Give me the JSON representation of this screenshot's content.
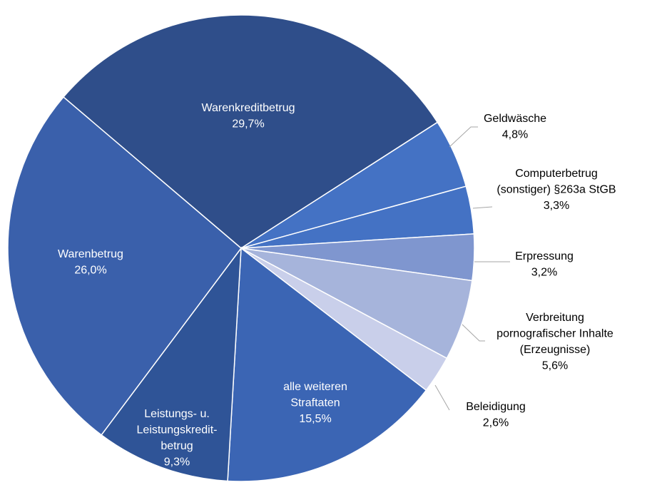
{
  "chart_data": {
    "type": "pie",
    "categories": [
      "Warenkreditbetrug",
      "Geldwäsche",
      "Computerbetrug\n(sonstiger) §263a StGB",
      "Erpressung",
      "Verbreitung\npornografischer Inhalte\n(Erzeugnisse)",
      "Beleidigung",
      "alle weiteren\nStraftaten",
      "Leistungs- u.\nLeistungskredit-\nbetrug",
      "Warenbetrug"
    ],
    "values": [
      29.7,
      4.8,
      3.3,
      3.2,
      5.6,
      2.6,
      15.5,
      9.3,
      26.0
    ],
    "value_labels": [
      "29,7%",
      "4,8%",
      "3,3%",
      "3,2%",
      "5,6%",
      "2,6%",
      "15,5%",
      "9,3%",
      "26,0%"
    ],
    "colors": [
      "#2f4e8a",
      "#4472c4",
      "#4472c4",
      "#7f96cf",
      "#a6b4db",
      "#c9cfea",
      "#3b65b4",
      "#2f5497",
      "#3a60ab"
    ]
  }
}
